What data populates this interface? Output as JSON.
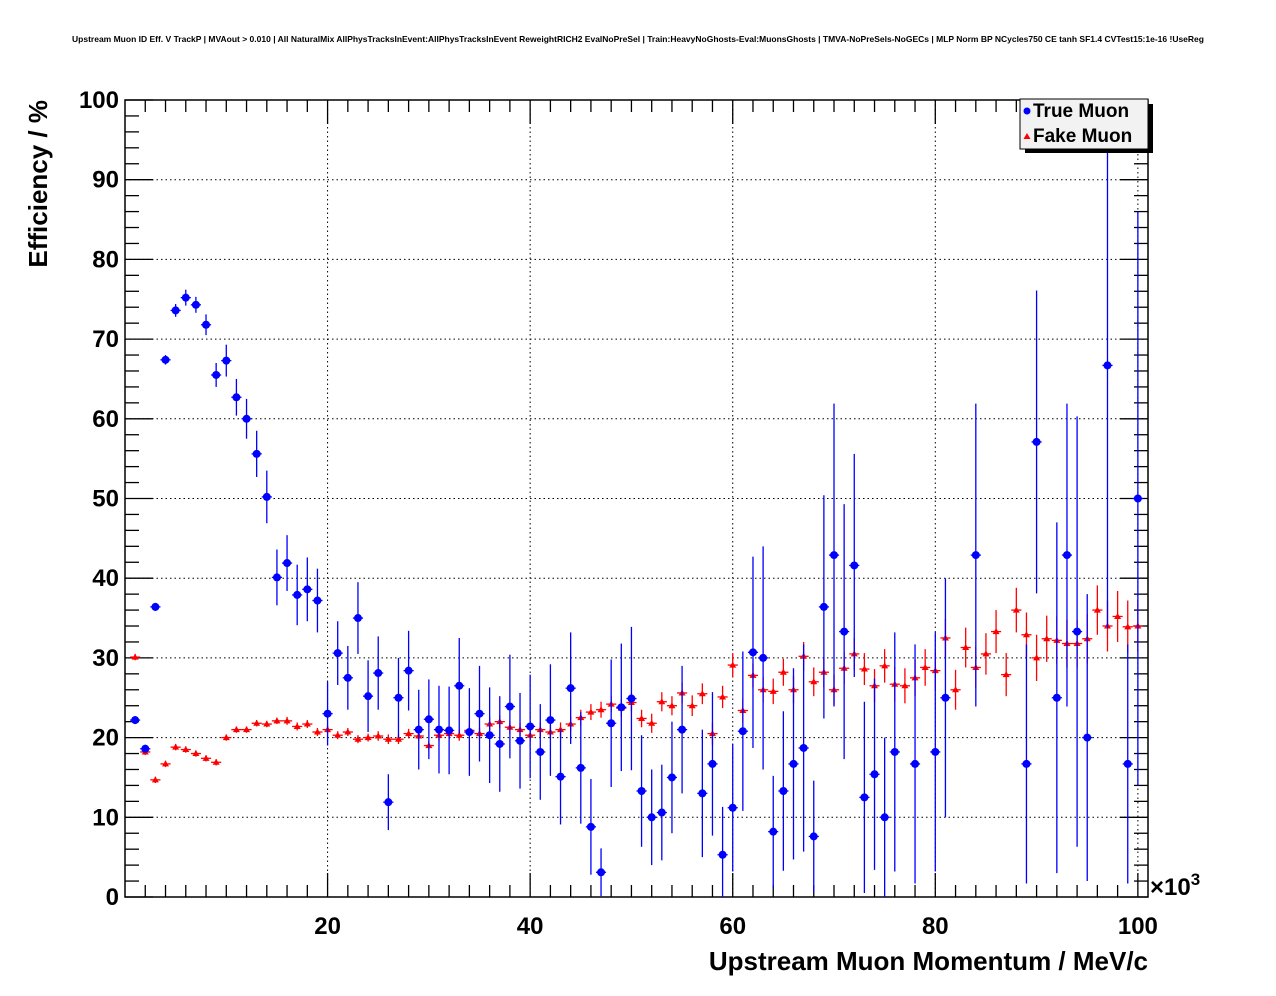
{
  "chart_data": {
    "type": "scatter",
    "title": "Upstream Muon ID Eff. V TrackP | MVAout > 0.010 | All NaturalMix AllPhysTracksInEvent:AllPhysTracksInEvent ReweightRICH2 EvalNoPreSel | Train:HeavyNoGhosts-Eval:MuonsGhosts | TMVA-NoPreSels-NoGECs | MLP Norm BP NCycles750 CE tanh SF1.4 CVTest15:1e-16 !UseReg",
    "xlabel": "Upstream Muon Momentum / MeV/c",
    "ylabel": "Efficiency / %",
    "x_multiplier": "×10",
    "x_multiplier_exp": "3",
    "xlim": [
      0,
      101
    ],
    "ylim": [
      0,
      100
    ],
    "xticks": [
      "20",
      "40",
      "60",
      "80",
      "100"
    ],
    "yticks": [
      "0",
      "10",
      "20",
      "30",
      "40",
      "50",
      "60",
      "70",
      "80",
      "90",
      "100"
    ],
    "grid": true,
    "legend_position": "top-right",
    "colors": {
      "true_muon": "#0000ff",
      "fake_muon": "#ff0000"
    },
    "series": [
      {
        "name": "True Muon",
        "marker": "circle",
        "points": [
          [
            1,
            22.2,
            0.5
          ],
          [
            2,
            18.6,
            0.5
          ],
          [
            3,
            36.4,
            0.5
          ],
          [
            4,
            67.4,
            0.6
          ],
          [
            5,
            73.6,
            0.8
          ],
          [
            6,
            75.2,
            1.0
          ],
          [
            7,
            74.3,
            1.0
          ],
          [
            8,
            71.8,
            1.3
          ],
          [
            9,
            65.5,
            1.5
          ],
          [
            10,
            67.3,
            2.0
          ],
          [
            11,
            62.7,
            2.3
          ],
          [
            12,
            60.0,
            2.5
          ],
          [
            13,
            55.6,
            2.9
          ],
          [
            14,
            50.2,
            3.3
          ],
          [
            15,
            40.1,
            3.5
          ],
          [
            16,
            41.9,
            3.5
          ],
          [
            17,
            37.9,
            3.8
          ],
          [
            18,
            38.6,
            4.0
          ],
          [
            19,
            37.2,
            4.0
          ],
          [
            20,
            23.0,
            4.0
          ],
          [
            21,
            30.6,
            4.0
          ],
          [
            22,
            27.5,
            4.0
          ],
          [
            23,
            35.0,
            4.5
          ],
          [
            24,
            25.2,
            4.5
          ],
          [
            25,
            28.1,
            4.6
          ],
          [
            26,
            11.9,
            3.5
          ],
          [
            27,
            25.0,
            5.0
          ],
          [
            28,
            28.4,
            5.0
          ],
          [
            29,
            21.0,
            5.0
          ],
          [
            30,
            22.3,
            5.0
          ],
          [
            31,
            21.0,
            5.5
          ],
          [
            32,
            20.9,
            5.5
          ],
          [
            33,
            26.5,
            6.0
          ],
          [
            34,
            20.7,
            5.5
          ],
          [
            35,
            23.0,
            6.0
          ],
          [
            36,
            20.3,
            6.0
          ],
          [
            37,
            19.2,
            6.0
          ],
          [
            38,
            23.9,
            6.5
          ],
          [
            39,
            19.6,
            6.0
          ],
          [
            40,
            21.4,
            6.5
          ],
          [
            41,
            18.2,
            6.0
          ],
          [
            42,
            22.2,
            7.0
          ],
          [
            43,
            15.1,
            6.0
          ],
          [
            44,
            26.2,
            7.0
          ],
          [
            45,
            16.2,
            7.0
          ],
          [
            46,
            8.8,
            6.0
          ],
          [
            47,
            3.1,
            3.0
          ],
          [
            48,
            21.8,
            8.0
          ],
          [
            49,
            23.8,
            8.0
          ],
          [
            50,
            24.9,
            9.0
          ],
          [
            51,
            13.3,
            7.0
          ],
          [
            52,
            10.0,
            6.0
          ],
          [
            53,
            10.6,
            6.0
          ],
          [
            54,
            15.0,
            7.0
          ],
          [
            55,
            21.0,
            8.0
          ],
          [
            57,
            13.0,
            8.0
          ],
          [
            58,
            16.7,
            9.0
          ],
          [
            59,
            5.3,
            6.0
          ],
          [
            60,
            11.2,
            8.0
          ],
          [
            61,
            20.8,
            10.0
          ],
          [
            62,
            30.7,
            12.0
          ],
          [
            63,
            30.0,
            14.0
          ],
          [
            64,
            8.2,
            7.0
          ],
          [
            65,
            13.3,
            10.0
          ],
          [
            66,
            16.7,
            12.0
          ],
          [
            67,
            18.7,
            13.0
          ],
          [
            68,
            7.6,
            7.0
          ],
          [
            69,
            36.4,
            14.0
          ],
          [
            70,
            42.9,
            19.0
          ],
          [
            71,
            33.3,
            16.0
          ],
          [
            72,
            41.6,
            14.0
          ],
          [
            73,
            12.5,
            12.0
          ],
          [
            74,
            15.4,
            12.0
          ],
          [
            75,
            10.0,
            10.0
          ],
          [
            76,
            18.2,
            15.0
          ],
          [
            78,
            16.7,
            15.0
          ],
          [
            80,
            18.2,
            15.0
          ],
          [
            81,
            25.0,
            15.0
          ],
          [
            84,
            42.9,
            19.0
          ],
          [
            89,
            16.7,
            15.0
          ],
          [
            90,
            57.1,
            19.0
          ],
          [
            92,
            25.0,
            22.0
          ],
          [
            93,
            42.9,
            19.0
          ],
          [
            94,
            33.3,
            27.0
          ],
          [
            95,
            20.0,
            18.0
          ],
          [
            97,
            66.7,
            33.0
          ],
          [
            99,
            16.7,
            15.0
          ],
          [
            100,
            50.0,
            36.0
          ]
        ]
      },
      {
        "name": "Fake Muon",
        "marker": "triangle",
        "x_start": 1,
        "values": [
          30.1,
          18.2,
          14.7,
          16.7,
          18.8,
          18.5,
          18.0,
          17.4,
          16.9,
          20.0,
          21.0,
          21.0,
          21.8,
          21.7,
          22.1,
          22.1,
          21.4,
          21.7,
          20.7,
          21.0,
          20.3,
          20.7,
          19.8,
          20.0,
          20.2,
          19.8,
          19.8,
          20.5,
          20.2,
          19.0,
          20.3,
          20.5,
          20.3,
          20.9,
          20.5,
          21.7,
          22.0,
          21.3,
          21.0,
          20.3,
          21.0,
          20.7,
          21.0,
          21.7,
          22.5,
          23.2,
          23.5,
          24.2,
          23.7,
          24.4,
          22.4,
          21.8,
          24.5,
          24.0,
          25.6,
          24.0,
          25.5,
          20.5,
          25.1,
          29.1,
          23.4,
          27.8,
          26.0,
          25.8,
          28.2,
          26.0,
          30.2,
          27.0,
          28.2,
          26.0,
          28.7,
          30.5,
          28.6,
          26.5,
          29.0,
          26.7,
          26.5,
          27.5,
          28.8,
          28.4,
          32.5,
          26.0,
          31.3,
          28.8,
          30.5,
          33.3,
          27.9,
          36.0,
          32.9,
          30.0,
          32.4,
          32.2,
          31.8,
          31.8,
          32.4,
          36.0,
          34.0,
          35.2,
          33.9,
          34.0
        ],
        "errors": [
          0.4,
          0.4,
          0.4,
          0.4,
          0.4,
          0.4,
          0.4,
          0.4,
          0.4,
          0.4,
          0.4,
          0.4,
          0.4,
          0.4,
          0.4,
          0.5,
          0.5,
          0.5,
          0.5,
          0.5,
          0.5,
          0.5,
          0.5,
          0.5,
          0.6,
          0.6,
          0.6,
          0.6,
          0.6,
          0.6,
          0.7,
          0.7,
          0.7,
          0.7,
          0.7,
          0.8,
          0.8,
          0.8,
          0.8,
          0.8,
          0.9,
          0.9,
          0.9,
          0.9,
          1.0,
          1.0,
          1.0,
          1.0,
          1.1,
          1.1,
          1.1,
          1.2,
          1.2,
          1.2,
          1.3,
          1.3,
          1.3,
          1.4,
          1.4,
          1.5,
          1.5,
          1.5,
          1.6,
          1.6,
          1.7,
          1.7,
          1.8,
          1.8,
          1.9,
          1.9,
          2.0,
          2.0,
          2.0,
          2.1,
          2.1,
          2.2,
          2.2,
          2.3,
          2.3,
          2.4,
          2.4,
          2.5,
          2.5,
          2.6,
          2.6,
          2.7,
          2.7,
          2.8,
          2.8,
          2.9,
          2.9,
          3.0,
          3.0,
          3.0,
          3.1,
          3.1,
          3.2,
          3.2,
          3.3,
          3.3
        ]
      }
    ]
  }
}
